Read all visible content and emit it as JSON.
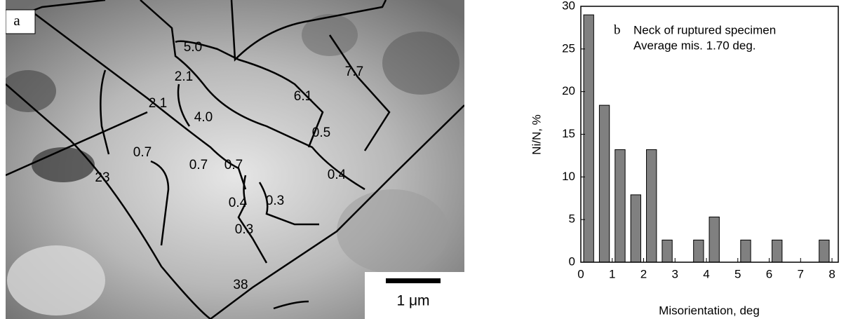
{
  "micrograph": {
    "panel_label": "a",
    "scale_bar": "1 μm",
    "boundary_labels": [
      "5.0",
      "7.7",
      "2.1",
      "6.1",
      "2.1",
      "4.0",
      "0.5",
      "0.7",
      "0.7",
      "0.7",
      "0.4",
      "23",
      "0.4",
      "0.3",
      "0.3",
      "38"
    ]
  },
  "chart_data": {
    "type": "bar",
    "panel_label": "b",
    "annotations": [
      "Neck of ruptured specimen",
      "Average mis. 1.70 deg."
    ],
    "x_label": "Misorientation, deg",
    "y_label": "Ni/N, %",
    "x": [
      0.25,
      0.75,
      1.25,
      1.75,
      2.25,
      2.75,
      3.75,
      4.25,
      5.25,
      6.25,
      7.75
    ],
    "values": [
      29,
      18.4,
      13.2,
      7.9,
      13.2,
      2.6,
      2.6,
      5.3,
      2.6,
      2.6,
      2.6
    ],
    "color": "#808080",
    "xlim": [
      0,
      8.2
    ],
    "xticks": [
      0,
      1,
      2,
      3,
      4,
      5,
      6,
      7,
      8
    ],
    "ylim": [
      0,
      30
    ],
    "yticks": [
      0,
      5,
      10,
      15,
      20,
      25,
      30
    ]
  }
}
